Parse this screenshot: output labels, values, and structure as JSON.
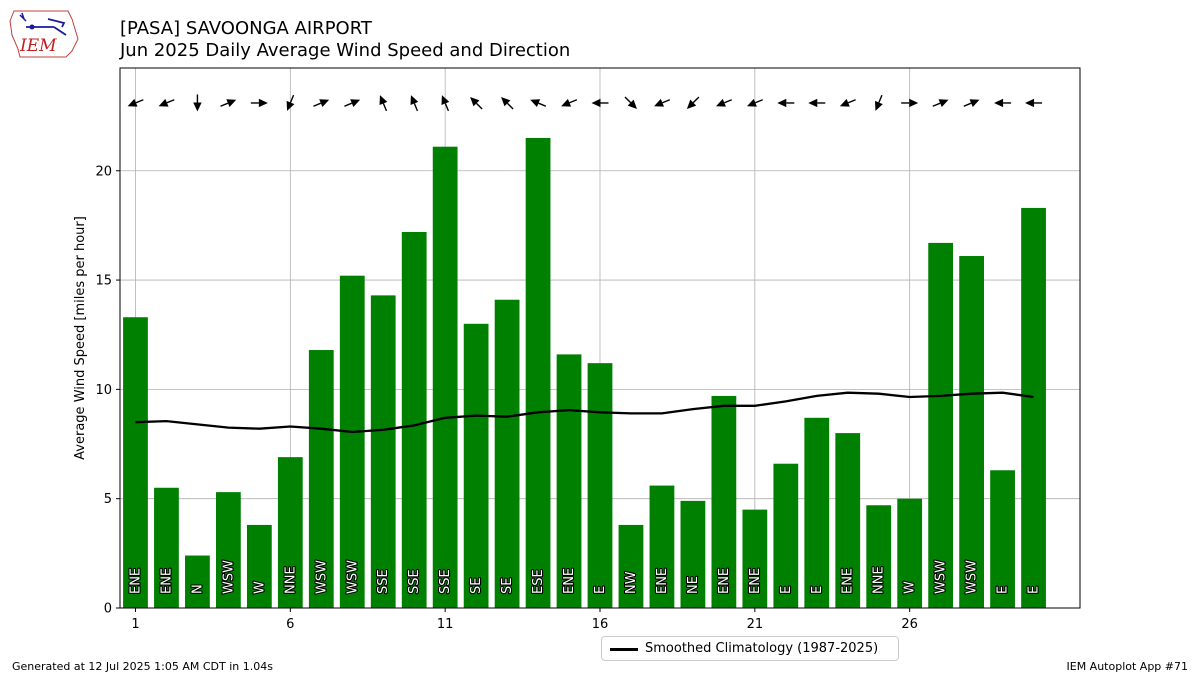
{
  "header": {
    "logo_text": "IEM",
    "title_line1": "[PASA] SAVOONGA AIRPORT",
    "title_line2": "Jun 2025 Daily Average Wind Speed and Direction"
  },
  "footer": {
    "generated": "Generated at 12 Jul 2025 1:05 AM CDT in 1.04s",
    "app": "IEM Autoplot App #71"
  },
  "colors": {
    "bar": "#008000",
    "climatology": "#000000",
    "arrow": "#000000",
    "grid": "#b0b0b0"
  },
  "chart_data": {
    "type": "bar",
    "ylabel": "Average Wind Speed [miles per hour]",
    "xlabel": "",
    "ylim": [
      0,
      24.7
    ],
    "xlim": [
      0.5,
      31.5
    ],
    "grid": true,
    "legend_placement": "bottom-center",
    "x_ticks": [
      1,
      6,
      11,
      16,
      21,
      26
    ],
    "y_ticks": [
      0,
      5,
      10,
      15,
      20
    ],
    "days": [
      1,
      2,
      3,
      4,
      5,
      6,
      7,
      8,
      9,
      10,
      11,
      12,
      13,
      14,
      15,
      16,
      17,
      18,
      19,
      20,
      21,
      22,
      23,
      24,
      25,
      26,
      27,
      28,
      29,
      30
    ],
    "series": [
      {
        "name": "",
        "values": [
          13.3,
          5.5,
          2.4,
          5.3,
          3.8,
          6.9,
          11.8,
          15.2,
          14.3,
          17.2,
          21.1,
          13.0,
          14.1,
          21.5,
          11.6,
          11.2,
          3.8,
          5.6,
          4.9,
          9.7,
          4.5,
          6.6,
          8.7,
          8.0,
          4.7,
          5.0,
          16.7,
          16.1,
          6.3,
          18.3
        ]
      }
    ],
    "directions": [
      "ENE",
      "ENE",
      "N",
      "WSW",
      "W",
      "NNE",
      "WSW",
      "WSW",
      "SSE",
      "SSE",
      "SSE",
      "SE",
      "SE",
      "ESE",
      "ENE",
      "E",
      "NW",
      "ENE",
      "NE",
      "ENE",
      "ENE",
      "E",
      "E",
      "ENE",
      "NNE",
      "W",
      "WSW",
      "WSW",
      "E",
      "E"
    ],
    "climatology": {
      "name": "Smoothed Climatology (1987-2025)",
      "values": [
        8.5,
        8.55,
        8.4,
        8.25,
        8.2,
        8.3,
        8.2,
        8.05,
        8.15,
        8.35,
        8.7,
        8.8,
        8.75,
        8.95,
        9.05,
        8.95,
        8.9,
        8.9,
        9.1,
        9.25,
        9.25,
        9.45,
        9.7,
        9.85,
        9.8,
        9.65,
        9.7,
        9.8,
        9.85,
        9.65
      ]
    }
  }
}
